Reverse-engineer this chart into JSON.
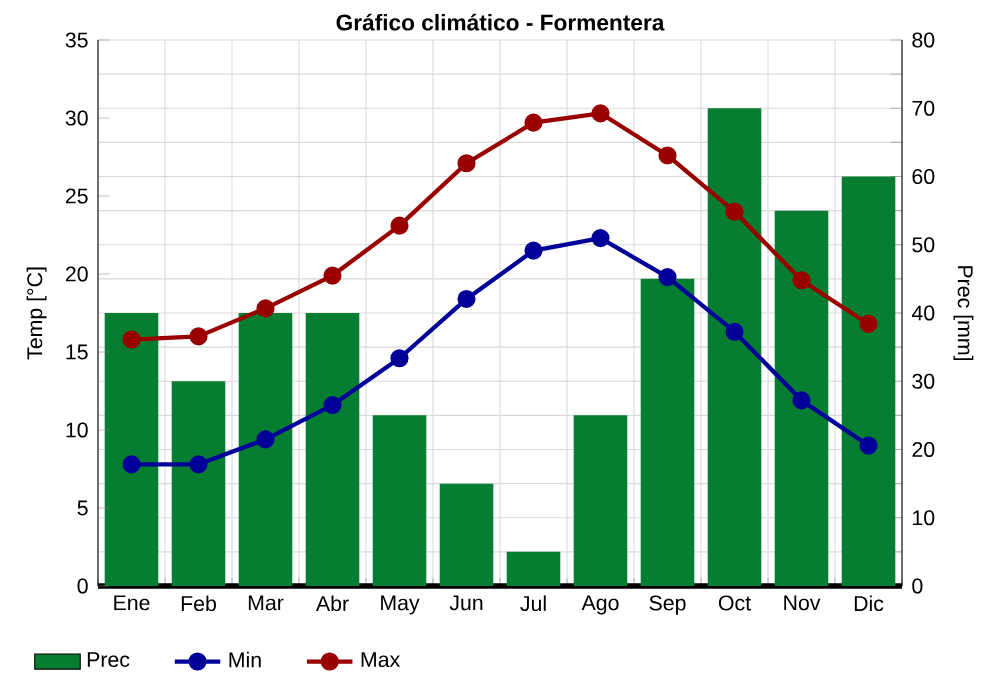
{
  "chart_data": {
    "type": "bar",
    "title": "Gráfico climático - Formentera",
    "ylabel": "Temp [°C]",
    "y2label": "Prec [mm]",
    "categories": [
      "Ene",
      "Feb",
      "Mar",
      "Abr",
      "May",
      "Jun",
      "Jul",
      "Ago",
      "Sep",
      "Oct",
      "Nov",
      "Dic"
    ],
    "series": [
      {
        "name": "Prec",
        "axis": "y2",
        "color": "#077d32",
        "values": [
          40,
          30,
          40,
          40,
          25,
          15,
          5,
          25,
          45,
          70,
          55,
          60
        ]
      },
      {
        "name": "Min",
        "type": "line",
        "color": "#000099",
        "values": [
          7.8,
          7.8,
          9.4,
          11.6,
          14.6,
          18.4,
          21.5,
          22.3,
          19.8,
          16.3,
          11.9,
          9.0
        ]
      },
      {
        "name": "Max",
        "type": "line",
        "color": "#990000",
        "values": [
          15.8,
          16.0,
          17.8,
          19.9,
          23.1,
          27.1,
          29.7,
          30.3,
          27.6,
          24.0,
          19.6,
          16.8
        ]
      }
    ],
    "ylim": [
      0,
      35
    ],
    "yticks": [
      0,
      5,
      10,
      15,
      20,
      25,
      30,
      35
    ],
    "y2lim": [
      0,
      80
    ],
    "y2ticks": [
      0,
      {
        "value": 5,
        "label": null
      },
      10,
      {
        "value": 15,
        "label": null
      },
      20,
      {
        "value": 25,
        "label": null
      },
      30,
      {
        "value": 35,
        "label": null
      },
      40,
      {
        "value": 45,
        "label": null
      },
      50,
      {
        "value": 55,
        "label": null
      },
      60,
      {
        "value": 65,
        "label": null
      },
      70,
      {
        "value": 75,
        "label": null
      },
      80
    ],
    "grid": true,
    "legend": "bottom",
    "marker": "circle"
  }
}
